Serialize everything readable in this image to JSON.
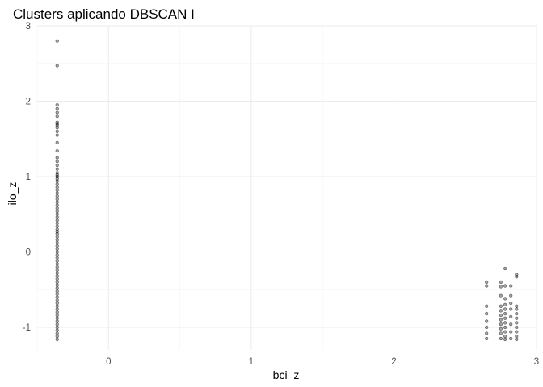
{
  "chart_data": {
    "type": "scatter",
    "title": "Clusters aplicando DBSCAN I",
    "xlabel": "bci_z",
    "ylabel": "ilo_z",
    "xlim": [
      -0.5,
      3.0
    ],
    "ylim": [
      -1.3,
      3.0
    ],
    "x_ticks": [
      0,
      1,
      2,
      3
    ],
    "y_ticks": [
      -1,
      0,
      1,
      2,
      3
    ],
    "grid": true,
    "legend": "none",
    "point_color": "#000000",
    "series": [
      {
        "points": [
          {
            "x": -0.36,
            "y": 2.8
          },
          {
            "x": -0.36,
            "y": 2.47
          },
          {
            "x": -0.36,
            "y": 1.95
          },
          {
            "x": -0.36,
            "y": 1.9
          },
          {
            "x": -0.36,
            "y": 1.85
          },
          {
            "x": -0.36,
            "y": 1.8
          },
          {
            "x": -0.36,
            "y": 1.72
          },
          {
            "x": -0.36,
            "y": 1.7
          },
          {
            "x": -0.36,
            "y": 1.68
          },
          {
            "x": -0.36,
            "y": 1.65
          },
          {
            "x": -0.36,
            "y": 1.6
          },
          {
            "x": -0.36,
            "y": 1.55
          },
          {
            "x": -0.36,
            "y": 1.45
          },
          {
            "x": -0.36,
            "y": 1.34
          },
          {
            "x": -0.36,
            "y": 1.25
          },
          {
            "x": -0.36,
            "y": 1.2
          },
          {
            "x": -0.36,
            "y": 1.15
          },
          {
            "x": -0.36,
            "y": 1.1
          },
          {
            "x": -0.36,
            "y": 1.05
          },
          {
            "x": -0.36,
            "y": 1.02
          },
          {
            "x": -0.36,
            "y": 1.0
          },
          {
            "x": -0.36,
            "y": 0.97
          },
          {
            "x": -0.36,
            "y": 0.94
          },
          {
            "x": -0.36,
            "y": 0.9
          },
          {
            "x": -0.36,
            "y": 0.86
          },
          {
            "x": -0.36,
            "y": 0.82
          },
          {
            "x": -0.36,
            "y": 0.78
          },
          {
            "x": -0.36,
            "y": 0.74
          },
          {
            "x": -0.36,
            "y": 0.7
          },
          {
            "x": -0.36,
            "y": 0.66
          },
          {
            "x": -0.36,
            "y": 0.62
          },
          {
            "x": -0.36,
            "y": 0.58
          },
          {
            "x": -0.36,
            "y": 0.54
          },
          {
            "x": -0.36,
            "y": 0.5
          },
          {
            "x": -0.36,
            "y": 0.46
          },
          {
            "x": -0.36,
            "y": 0.42
          },
          {
            "x": -0.36,
            "y": 0.38
          },
          {
            "x": -0.36,
            "y": 0.34
          },
          {
            "x": -0.36,
            "y": 0.3
          },
          {
            "x": -0.36,
            "y": 0.27
          },
          {
            "x": -0.36,
            "y": 0.24
          },
          {
            "x": -0.36,
            "y": 0.2
          },
          {
            "x": -0.36,
            "y": 0.16
          },
          {
            "x": -0.36,
            "y": 0.12
          },
          {
            "x": -0.36,
            "y": 0.08
          },
          {
            "x": -0.36,
            "y": 0.04
          },
          {
            "x": -0.36,
            "y": 0.0
          },
          {
            "x": -0.36,
            "y": -0.04
          },
          {
            "x": -0.36,
            "y": -0.08
          },
          {
            "x": -0.36,
            "y": -0.12
          },
          {
            "x": -0.36,
            "y": -0.16
          },
          {
            "x": -0.36,
            "y": -0.2
          },
          {
            "x": -0.36,
            "y": -0.24
          },
          {
            "x": -0.36,
            "y": -0.28
          },
          {
            "x": -0.36,
            "y": -0.32
          },
          {
            "x": -0.36,
            "y": -0.36
          },
          {
            "x": -0.36,
            "y": -0.4
          },
          {
            "x": -0.36,
            "y": -0.44
          },
          {
            "x": -0.36,
            "y": -0.48
          },
          {
            "x": -0.36,
            "y": -0.52
          },
          {
            "x": -0.36,
            "y": -0.56
          },
          {
            "x": -0.36,
            "y": -0.6
          },
          {
            "x": -0.36,
            "y": -0.64
          },
          {
            "x": -0.36,
            "y": -0.68
          },
          {
            "x": -0.36,
            "y": -0.72
          },
          {
            "x": -0.36,
            "y": -0.76
          },
          {
            "x": -0.36,
            "y": -0.8
          },
          {
            "x": -0.36,
            "y": -0.84
          },
          {
            "x": -0.36,
            "y": -0.88
          },
          {
            "x": -0.36,
            "y": -0.92
          },
          {
            "x": -0.36,
            "y": -0.96
          },
          {
            "x": -0.36,
            "y": -1.0
          },
          {
            "x": -0.36,
            "y": -1.04
          },
          {
            "x": -0.36,
            "y": -1.08
          },
          {
            "x": -0.36,
            "y": -1.12
          },
          {
            "x": -0.36,
            "y": -1.16
          },
          {
            "x": 2.65,
            "y": -0.4
          },
          {
            "x": 2.65,
            "y": -0.45
          },
          {
            "x": 2.65,
            "y": -0.72
          },
          {
            "x": 2.65,
            "y": -0.82
          },
          {
            "x": 2.65,
            "y": -0.92
          },
          {
            "x": 2.65,
            "y": -1.0
          },
          {
            "x": 2.65,
            "y": -1.08
          },
          {
            "x": 2.65,
            "y": -1.15
          },
          {
            "x": 2.75,
            "y": -0.4
          },
          {
            "x": 2.75,
            "y": -0.46
          },
          {
            "x": 2.75,
            "y": -0.58
          },
          {
            "x": 2.75,
            "y": -0.72
          },
          {
            "x": 2.75,
            "y": -0.78
          },
          {
            "x": 2.75,
            "y": -0.84
          },
          {
            "x": 2.75,
            "y": -0.9
          },
          {
            "x": 2.75,
            "y": -0.96
          },
          {
            "x": 2.75,
            "y": -1.02
          },
          {
            "x": 2.75,
            "y": -1.08
          },
          {
            "x": 2.75,
            "y": -1.15
          },
          {
            "x": 2.78,
            "y": -0.22
          },
          {
            "x": 2.78,
            "y": -0.45
          },
          {
            "x": 2.78,
            "y": -0.62
          },
          {
            "x": 2.78,
            "y": -0.7
          },
          {
            "x": 2.78,
            "y": -0.76
          },
          {
            "x": 2.78,
            "y": -0.82
          },
          {
            "x": 2.78,
            "y": -0.88
          },
          {
            "x": 2.78,
            "y": -0.94
          },
          {
            "x": 2.78,
            "y": -1.0
          },
          {
            "x": 2.78,
            "y": -1.06
          },
          {
            "x": 2.78,
            "y": -1.12
          },
          {
            "x": 2.78,
            "y": -1.16
          },
          {
            "x": 2.82,
            "y": -0.45
          },
          {
            "x": 2.82,
            "y": -0.58
          },
          {
            "x": 2.82,
            "y": -0.68
          },
          {
            "x": 2.82,
            "y": -0.76
          },
          {
            "x": 2.82,
            "y": -0.86
          },
          {
            "x": 2.82,
            "y": -0.96
          },
          {
            "x": 2.82,
            "y": -1.06
          },
          {
            "x": 2.82,
            "y": -1.15
          },
          {
            "x": 2.86,
            "y": -0.3
          },
          {
            "x": 2.86,
            "y": -0.33
          },
          {
            "x": 2.86,
            "y": -0.72
          },
          {
            "x": 2.86,
            "y": -0.76
          },
          {
            "x": 2.86,
            "y": -0.82
          },
          {
            "x": 2.86,
            "y": -0.88
          },
          {
            "x": 2.86,
            "y": -0.94
          },
          {
            "x": 2.86,
            "y": -1.0
          },
          {
            "x": 2.86,
            "y": -1.06
          },
          {
            "x": 2.86,
            "y": -1.12
          },
          {
            "x": 2.86,
            "y": -1.16
          }
        ]
      }
    ]
  }
}
